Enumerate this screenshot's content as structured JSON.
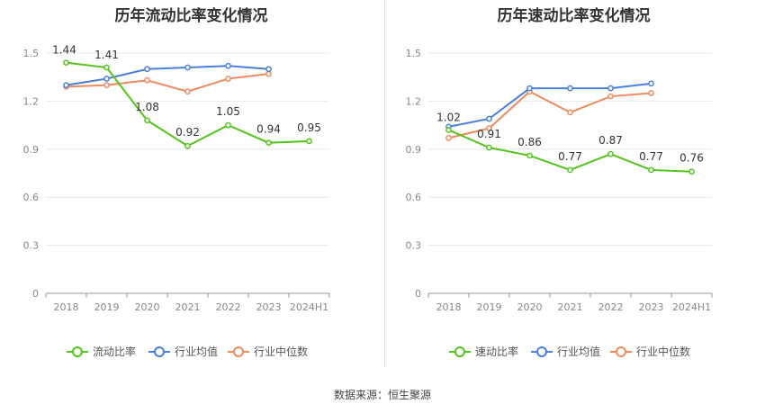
{
  "colors": {
    "primary": "#52c41a",
    "avg": "#4a7fe0",
    "median": "#f08a5d",
    "grid": "#e9e9e9",
    "axis": "#888888"
  },
  "source": "数据来源：恒生聚源",
  "chart_data": [
    {
      "type": "line",
      "title": "历年流动比率变化情况",
      "categories": [
        "2018",
        "2019",
        "2020",
        "2021",
        "2022",
        "2023",
        "2024H1"
      ],
      "ylim": [
        0,
        1.5
      ],
      "yticks": [
        "0",
        "0.3",
        "0.6",
        "0.9",
        "1.2",
        "1.5"
      ],
      "grid": true,
      "legend_position": "bottom",
      "series": [
        {
          "name": "流动比率",
          "color": "#52c41a",
          "values": [
            1.44,
            1.41,
            1.08,
            0.92,
            1.05,
            0.94,
            0.95
          ],
          "labels": [
            "1.44",
            "1.41",
            "1.08",
            "0.92",
            "1.05",
            "0.94",
            "0.95"
          ]
        },
        {
          "name": "行业均值",
          "color": "#4a7fe0",
          "values": [
            1.3,
            1.34,
            1.4,
            1.41,
            1.42,
            1.4,
            null
          ]
        },
        {
          "name": "行业中位数",
          "color": "#f08a5d",
          "values": [
            1.29,
            1.3,
            1.33,
            1.26,
            1.34,
            1.37,
            null
          ]
        }
      ]
    },
    {
      "type": "line",
      "title": "历年速动比率变化情况",
      "categories": [
        "2018",
        "2019",
        "2020",
        "2021",
        "2022",
        "2023",
        "2024H1"
      ],
      "ylim": [
        0,
        1.5
      ],
      "yticks": [
        "0",
        "0.3",
        "0.6",
        "0.9",
        "1.2",
        "1.5"
      ],
      "grid": true,
      "legend_position": "bottom",
      "series": [
        {
          "name": "速动比率",
          "color": "#52c41a",
          "values": [
            1.02,
            0.91,
            0.86,
            0.77,
            0.87,
            0.77,
            0.76
          ],
          "labels": [
            "1.02",
            "0.91",
            "0.86",
            "0.77",
            "0.87",
            "0.77",
            "0.76"
          ]
        },
        {
          "name": "行业均值",
          "color": "#4a7fe0",
          "values": [
            1.04,
            1.09,
            1.28,
            1.28,
            1.28,
            1.31,
            null
          ]
        },
        {
          "name": "行业中位数",
          "color": "#f08a5d",
          "values": [
            0.97,
            1.03,
            1.26,
            1.13,
            1.23,
            1.25,
            null
          ]
        }
      ]
    }
  ]
}
